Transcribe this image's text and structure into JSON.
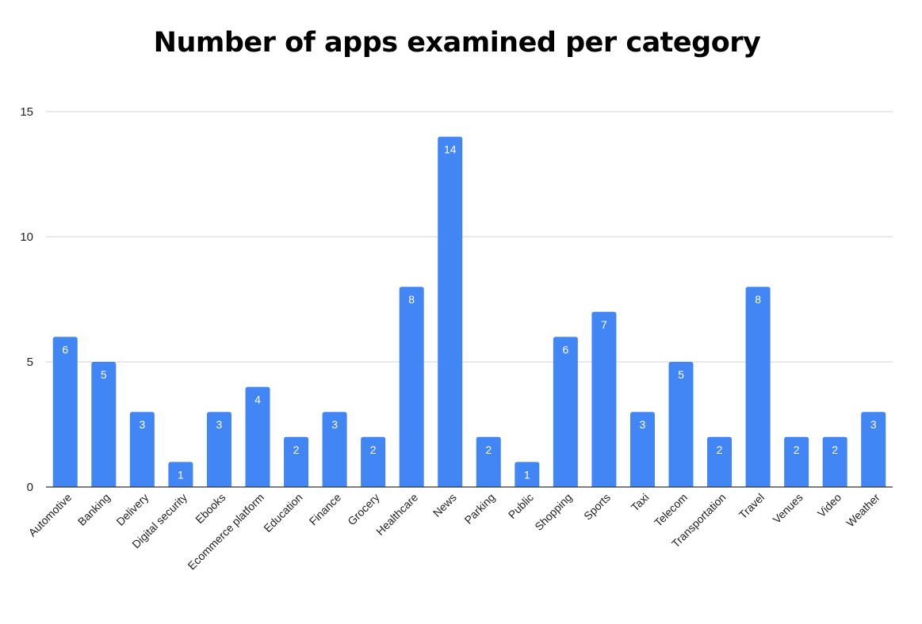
{
  "chart_data": {
    "type": "bar",
    "title": "Number of apps examined per category",
    "xlabel": "",
    "ylabel": "",
    "ylim": [
      0,
      15
    ],
    "yticks": [
      0,
      5,
      10,
      15
    ],
    "grid": true,
    "legend": "none",
    "bar_color": "#4285f4",
    "categories": [
      "Automotive",
      "Banking",
      "Delivery",
      "Digital security",
      "Ebooks",
      "Ecommerce platform",
      "Education",
      "Finance",
      "Grocery",
      "Healthcare",
      "News",
      "Parking",
      "Public",
      "Shopping",
      "Sports",
      "Taxi",
      "Telecom",
      "Transportation",
      "Travel",
      "Venues",
      "Video",
      "Weather"
    ],
    "values": [
      6,
      5,
      3,
      1,
      3,
      4,
      2,
      3,
      2,
      8,
      14,
      2,
      1,
      6,
      7,
      3,
      5,
      2,
      8,
      2,
      2,
      3
    ]
  }
}
